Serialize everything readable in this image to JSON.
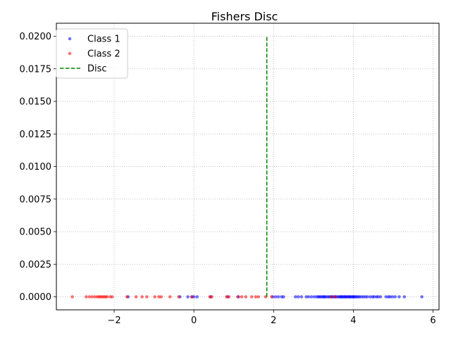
{
  "chart_data": {
    "type": "scatter",
    "title": "Fishers Disc",
    "xlabel": "",
    "ylabel": "",
    "xlim": [
      -3.45,
      6.15
    ],
    "ylim": [
      -0.001,
      0.021
    ],
    "xticks": [
      -2,
      0,
      2,
      4,
      6
    ],
    "xtick_labels": [
      "−2",
      "0",
      "2",
      "4",
      "6"
    ],
    "yticks": [
      0.0,
      0.0025,
      0.005,
      0.0075,
      0.01,
      0.0125,
      0.015,
      0.0175,
      0.02
    ],
    "ytick_labels": [
      "0.0000",
      "0.0025",
      "0.0050",
      "0.0075",
      "0.0100",
      "0.0125",
      "0.0150",
      "0.0175",
      "0.0200"
    ],
    "grid": true,
    "legend_position": "top-left",
    "series": [
      {
        "name": "Class 1",
        "color": "#0000ff",
        "marker": "dot",
        "x": [
          -1.65,
          -0.35,
          -0.15,
          -0.05,
          0.0,
          0.08,
          0.42,
          0.85,
          1.12,
          1.98,
          2.05,
          2.12,
          2.2,
          2.25,
          2.55,
          2.62,
          2.7,
          2.82,
          2.88,
          2.95,
          3.02,
          3.08,
          3.12,
          3.15,
          3.18,
          3.22,
          3.25,
          3.28,
          3.3,
          3.35,
          3.38,
          3.42,
          3.45,
          3.48,
          3.52,
          3.55,
          3.58,
          3.62,
          3.65,
          3.68,
          3.7,
          3.72,
          3.75,
          3.78,
          3.8,
          3.82,
          3.85,
          3.88,
          3.9,
          3.92,
          3.95,
          3.98,
          4.0,
          4.02,
          4.05,
          4.08,
          4.12,
          4.15,
          4.2,
          4.25,
          4.3,
          4.35,
          4.42,
          4.48,
          4.52,
          4.58,
          4.62,
          4.68,
          4.82,
          4.88,
          4.92,
          4.98,
          5.05,
          5.15,
          5.28,
          5.72
        ],
        "y": [
          0,
          0,
          0,
          0,
          0,
          0,
          0,
          0,
          0,
          0,
          0,
          0,
          0,
          0,
          0,
          0,
          0,
          0,
          0,
          0,
          0,
          0,
          0,
          0,
          0,
          0,
          0,
          0,
          0,
          0,
          0,
          0,
          0,
          0,
          0,
          0,
          0,
          0,
          0,
          0,
          0,
          0,
          0,
          0,
          0,
          0,
          0,
          0,
          0,
          0,
          0,
          0,
          0,
          0,
          0,
          0,
          0,
          0,
          0,
          0,
          0,
          0,
          0,
          0,
          0,
          0,
          0,
          0,
          0,
          0,
          0,
          0,
          0,
          0,
          0,
          0
        ]
      },
      {
        "name": "Class 2",
        "color": "#ff0000",
        "marker": "dot",
        "x": [
          -3.05,
          -2.7,
          -2.62,
          -2.55,
          -2.48,
          -2.42,
          -2.38,
          -2.34,
          -2.3,
          -2.26,
          -2.22,
          -2.18,
          -2.1,
          -2.05,
          -1.68,
          -1.45,
          -1.3,
          -1.18,
          -0.98,
          -0.88,
          -0.82,
          -0.6,
          -0.38,
          -0.05,
          0.4,
          0.45,
          0.82,
          0.88,
          1.1,
          1.2,
          1.3,
          1.45,
          1.55,
          1.62,
          1.8,
          1.95,
          3.45,
          3.55
        ],
        "y": [
          0,
          0,
          0,
          0,
          0,
          0,
          0,
          0,
          0,
          0,
          0,
          0,
          0,
          0,
          0,
          0,
          0,
          0,
          0,
          0,
          0,
          0,
          0,
          0,
          0,
          0,
          0,
          0,
          0,
          0,
          0,
          0,
          0,
          0,
          0,
          0,
          0,
          0
        ]
      },
      {
        "name": "Disc",
        "color": "#008000",
        "marker": "dashed-line",
        "x": [
          1.83,
          1.83
        ],
        "y": [
          0.0,
          0.02
        ]
      }
    ]
  }
}
